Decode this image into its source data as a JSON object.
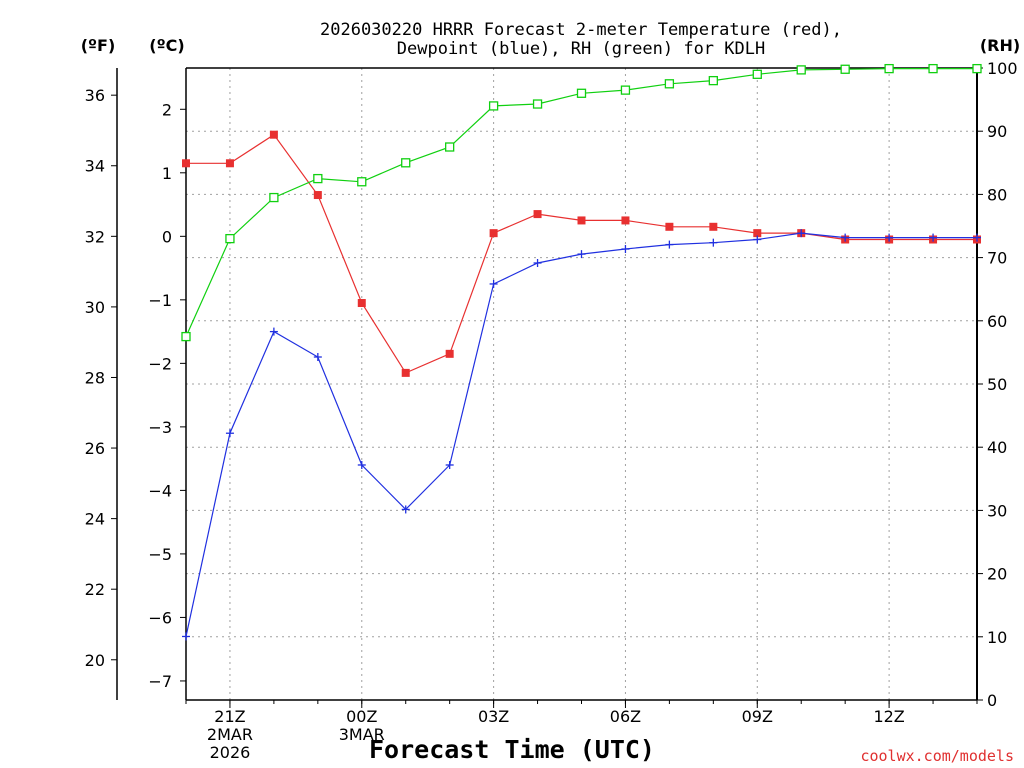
{
  "title_line1": "2026030220 HRRR Forecast 2-meter Temperature (red),",
  "title_line2": "Dewpoint (blue), RH (green) for KDLH",
  "unit_left_f": "(ºF)",
  "unit_left_c": "(ºC)",
  "unit_right": "(RH)",
  "credit": "coolwx.com/models",
  "colors": {
    "temperature": "#e83030",
    "dewpoint": "#2030e0",
    "rh": "#10d010"
  },
  "chart_data": {
    "type": "line",
    "xlabel": "Forecast Time (UTC)",
    "x": [
      "20Z",
      "21Z",
      "22Z",
      "23Z",
      "00Z",
      "01Z",
      "02Z",
      "03Z",
      "04Z",
      "05Z",
      "06Z",
      "07Z",
      "08Z",
      "09Z",
      "10Z",
      "11Z",
      "12Z",
      "13Z",
      "14Z"
    ],
    "x_tick_labels": [
      {
        "x": "21Z",
        "lines": [
          "21Z",
          "2MAR",
          "2026"
        ]
      },
      {
        "x": "00Z",
        "lines": [
          "00Z",
          "3MAR"
        ]
      },
      {
        "x": "03Z",
        "lines": [
          "03Z"
        ]
      },
      {
        "x": "06Z",
        "lines": [
          "06Z"
        ]
      },
      {
        "x": "09Z",
        "lines": [
          "09Z"
        ]
      },
      {
        "x": "12Z",
        "lines": [
          "12Z"
        ]
      }
    ],
    "y_celsius": {
      "range": [
        -7.3,
        2.65
      ],
      "ticks": [
        -7,
        -6,
        -5,
        -4,
        -3,
        -2,
        -1,
        0,
        1,
        2
      ]
    },
    "y_fahrenheit": {
      "ticks": [
        20,
        22,
        24,
        26,
        28,
        30,
        32,
        34,
        36
      ]
    },
    "y_rh": {
      "range": [
        0,
        100
      ],
      "ticks": [
        0,
        10,
        20,
        30,
        40,
        50,
        60,
        70,
        80,
        90,
        100
      ]
    },
    "grid": true,
    "series": [
      {
        "name": "Temperature",
        "axis": "celsius",
        "marker": "filled-square",
        "values": [
          1.15,
          1.15,
          1.6,
          0.65,
          -1.05,
          -2.15,
          -1.85,
          0.05,
          0.35,
          0.25,
          0.25,
          0.15,
          0.15,
          0.05,
          0.05,
          -0.05,
          -0.05,
          -0.05,
          -0.05
        ]
      },
      {
        "name": "Dewpoint",
        "axis": "celsius",
        "marker": "plus",
        "values": [
          -6.3,
          -3.1,
          -1.5,
          -1.9,
          -3.6,
          -4.3,
          -3.6,
          -0.75,
          -0.42,
          -0.28,
          -0.2,
          -0.13,
          -0.1,
          -0.05,
          0.05,
          -0.02,
          -0.02,
          -0.02,
          -0.02
        ]
      },
      {
        "name": "RH",
        "axis": "rh",
        "marker": "open-square",
        "values": [
          57.5,
          73,
          79.5,
          82.5,
          82,
          85,
          87.5,
          94,
          94.3,
          96,
          96.5,
          97.5,
          98,
          99,
          99.7,
          99.8,
          99.9,
          99.9,
          99.9
        ]
      }
    ]
  }
}
